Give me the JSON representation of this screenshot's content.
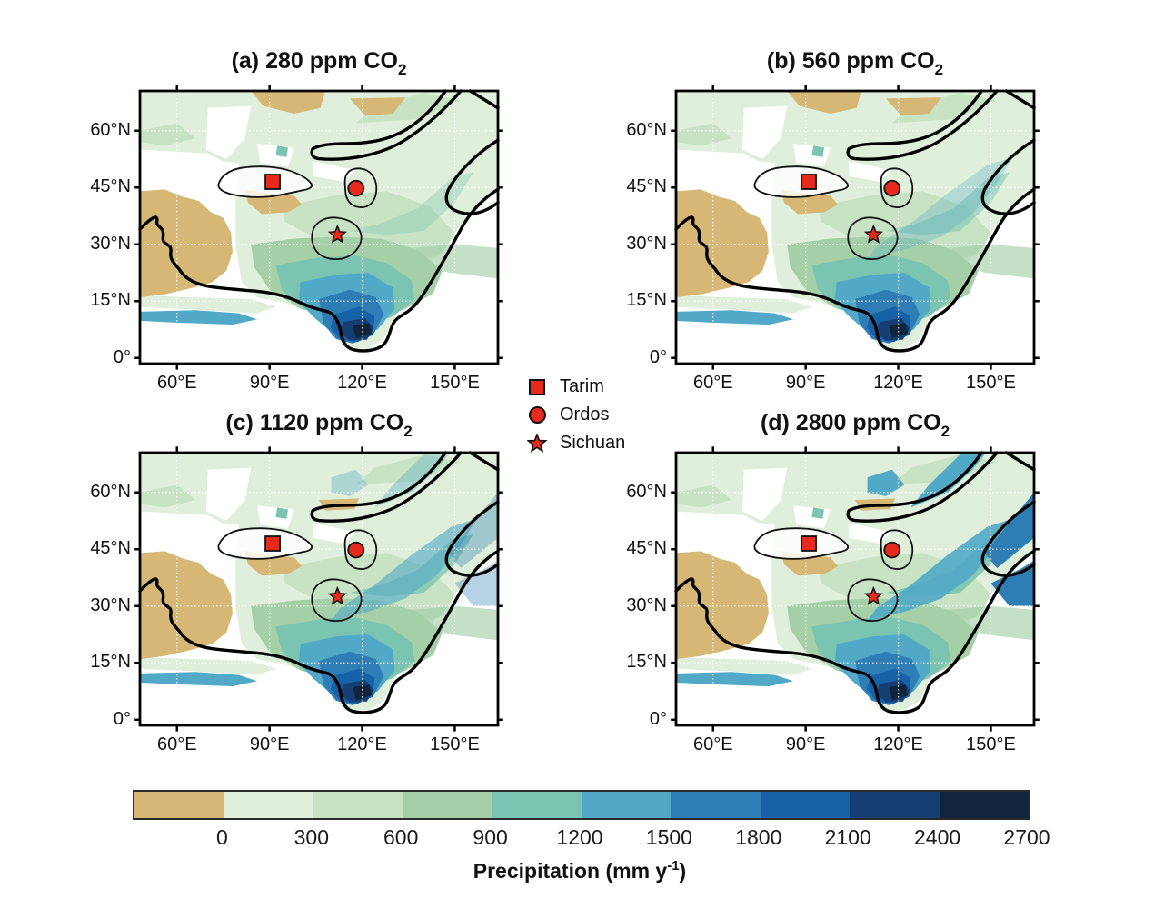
{
  "figure": {
    "panels": [
      {
        "id": "a",
        "title_main": "(a) 280 ppm CO",
        "title_sub": "2",
        "co2_ppm": 280
      },
      {
        "id": "b",
        "title_main": "(b) 560 ppm CO",
        "title_sub": "2",
        "co2_ppm": 560
      },
      {
        "id": "c",
        "title_main": "(c) 1120 ppm CO",
        "title_sub": "2",
        "co2_ppm": 1120
      },
      {
        "id": "d",
        "title_main": "(d) 2800 ppm CO",
        "title_sub": "2",
        "co2_ppm": 2800
      }
    ],
    "axes": {
      "x_ticks": [
        "60°E",
        "90°E",
        "120°E",
        "150°E"
      ],
      "y_ticks": [
        "60°N",
        "45°N",
        "30°N",
        "15°N",
        "0°"
      ]
    },
    "legend": {
      "marker_color": "#E62A1E",
      "items": [
        {
          "marker": "square",
          "label": "Tarim"
        },
        {
          "marker": "circle",
          "label": "Ordos"
        },
        {
          "marker": "star",
          "label": "Sichuan"
        }
      ]
    },
    "colorbar": {
      "tick_labels": [
        "0",
        "300",
        "600",
        "900",
        "1200",
        "1500",
        "1800",
        "2100",
        "2400",
        "2700"
      ],
      "colors": [
        "#D6B775",
        "#DFEFDB",
        "#C7E3C3",
        "#A5D0A7",
        "#7BC4B1",
        "#51A9C7",
        "#2E7EB5",
        "#1661A8",
        "#153E72",
        "#12233C"
      ],
      "caption_main": "Precipitation (mm y",
      "caption_sup": "-1",
      "caption_close": ")"
    }
  },
  "chart_data": {
    "type": "heatmap",
    "description": "Four-panel map figure of simulated annual precipitation over an East Asian paleogeography under increasing atmospheric CO2 (280, 560, 1120, 2800 ppm). Wet (blue) region in the south intensifies and expands north-eastward with higher CO2; tan indicates driest areas in the west.",
    "panels": [
      {
        "label": "(a) 280 ppm CO2",
        "co2_ppm": 280
      },
      {
        "label": "(b) 560 ppm CO2",
        "co2_ppm": 560
      },
      {
        "label": "(c) 1120 ppm CO2",
        "co2_ppm": 1120
      },
      {
        "label": "(d) 2800 ppm CO2",
        "co2_ppm": 2800
      }
    ],
    "x_axis": {
      "label": "longitude",
      "tick_values_deg_E": [
        60,
        90,
        120,
        150
      ],
      "range_deg_E": [
        48,
        164
      ]
    },
    "y_axis": {
      "label": "latitude",
      "tick_values_deg_N": [
        0,
        15,
        30,
        45,
        60
      ],
      "range_deg_N": [
        -1.5,
        70.5
      ]
    },
    "grid": "dotted white graticule at 30 deg lon / 15 deg lat",
    "sites": [
      {
        "name": "Tarim",
        "marker": "square",
        "lon_deg_E": 91,
        "lat_deg_N": 46.5
      },
      {
        "name": "Ordos",
        "marker": "circle",
        "lon_deg_E": 118,
        "lat_deg_N": 44.8
      },
      {
        "name": "Sichuan",
        "marker": "star",
        "lon_deg_E": 112,
        "lat_deg_N": 32.5
      }
    ],
    "colorbar": {
      "label": "Precipitation (mm y-1)",
      "tick_values": [
        0,
        300,
        600,
        900,
        1200,
        1500,
        1800,
        2100,
        2400,
        2700
      ],
      "bin_colors": [
        "#D6B775",
        "#DFEFDB",
        "#C7E3C3",
        "#A5D0A7",
        "#7BC4B1",
        "#51A9C7",
        "#2E7EB5",
        "#1661A8",
        "#153E72",
        "#12233C"
      ],
      "orientation": "horizontal"
    }
  }
}
